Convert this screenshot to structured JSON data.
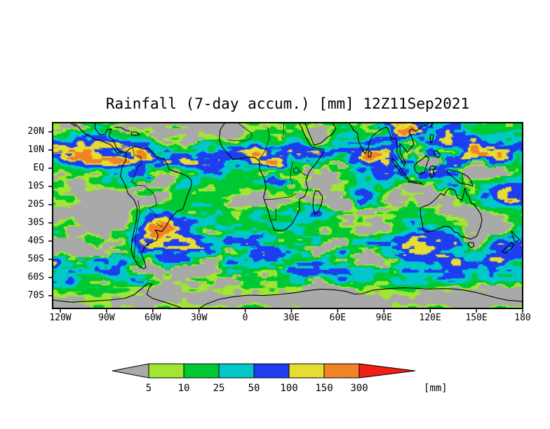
{
  "chart": {
    "title": "Rainfall (7-day accum.) [mm] 12Z11Sep2021"
  },
  "axes": {
    "lat_ticks": [
      {
        "label": "20N",
        "deg": 20
      },
      {
        "label": "10N",
        "deg": 10
      },
      {
        "label": "EQ",
        "deg": 0
      },
      {
        "label": "10S",
        "deg": -10
      },
      {
        "label": "20S",
        "deg": -20
      },
      {
        "label": "30S",
        "deg": -30
      },
      {
        "label": "40S",
        "deg": -40
      },
      {
        "label": "50S",
        "deg": -50
      },
      {
        "label": "60S",
        "deg": -60
      },
      {
        "label": "70S",
        "deg": -70
      }
    ],
    "lon_ticks": [
      {
        "label": "120W",
        "deg": -120
      },
      {
        "label": "90W",
        "deg": -90
      },
      {
        "label": "60W",
        "deg": -60
      },
      {
        "label": "30W",
        "deg": -30
      },
      {
        "label": "0",
        "deg": 0
      },
      {
        "label": "30E",
        "deg": 30
      },
      {
        "label": "60E",
        "deg": 60
      },
      {
        "label": "90E",
        "deg": 90
      },
      {
        "label": "120E",
        "deg": 120
      },
      {
        "label": "150E",
        "deg": 150
      },
      {
        "label": "180",
        "deg": 180
      }
    ]
  },
  "legend": {
    "unit": "[mm]",
    "tick_labels": [
      "5",
      "10",
      "25",
      "50",
      "100",
      "150",
      "300"
    ]
  },
  "colors": {
    "map_background": "#a9a9a9",
    "outline": "#000000",
    "palette": [
      "#a9a9a9",
      "#a0e632",
      "#00c832",
      "#00c8c8",
      "#1e3cf0",
      "#e6dc32",
      "#f08228",
      "#f01e14"
    ]
  },
  "chart_data": {
    "type": "heatmap",
    "title": "Rainfall (7-day accum.) [mm] 12Z11Sep2021",
    "variable": "7-day accumulated rainfall",
    "unit": "mm",
    "valid_time": "12Z11Sep2021",
    "lon_range_deg": [
      -125,
      180
    ],
    "lat_range_deg": [
      -77,
      25
    ],
    "x_tick_labels": [
      "120W",
      "90W",
      "60W",
      "30W",
      "0",
      "30E",
      "60E",
      "90E",
      "120E",
      "150E",
      "180"
    ],
    "y_tick_labels": [
      "20N",
      "10N",
      "EQ",
      "10S",
      "20S",
      "30S",
      "40S",
      "50S",
      "60S",
      "70S"
    ],
    "grid": false,
    "legend_position": "bottom",
    "color_bins_mm": [
      {
        "range": "<5",
        "color": "#a9a9a9"
      },
      {
        "range": "5-10",
        "color": "#a0e632"
      },
      {
        "range": "10-25",
        "color": "#00c832"
      },
      {
        "range": "25-50",
        "color": "#00c8c8"
      },
      {
        "range": "50-100",
        "color": "#1e3cf0"
      },
      {
        "range": "100-150",
        "color": "#e6dc32"
      },
      {
        "range": "150-300",
        "color": "#f08228"
      },
      {
        "range": ">300",
        "color": "#f01e14"
      }
    ],
    "notable_features": [
      "Heavy rain (150-300+ mm) along the ITCZ near 5-10N across the Pacific, Atlantic and equatorial Africa",
      "Very heavy rain over the Bay of Bengal, Southeast Asia, Philippines and western Pacific",
      "Widespread 25-100 mm over the Amazon basin and Congo basin",
      "Heavy orange cell near Uruguay / northern Argentina around 35S 55W",
      "Banded 10-50 mm rainfall along the Southern Ocean storm track 35S-60S at all longitudes",
      "Dry gray subtropics: Sahara, Arabia, southeast Pacific, Namibian coast, central Australia",
      "Tropical-cyclone rain streak in the central North Atlantic near 20-25N"
    ]
  }
}
